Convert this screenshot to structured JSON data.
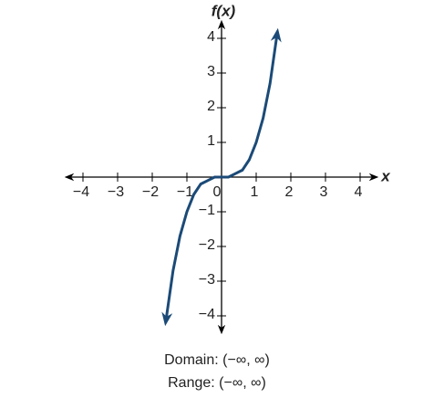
{
  "chart_data": {
    "type": "line",
    "x_label": "x",
    "y_label": "f(x)",
    "x": [
      -1.6,
      -1.4,
      -1.2,
      -1,
      -0.8,
      -0.6,
      -0.4,
      -0.2,
      0,
      0.2,
      0.4,
      0.6,
      0.8,
      1,
      1.2,
      1.4,
      1.6
    ],
    "values": [
      -4.1,
      -2.7,
      -1.7,
      -1,
      -0.5,
      -0.2,
      -0.1,
      0,
      0,
      0,
      0.1,
      0.2,
      0.5,
      1,
      1.7,
      2.7,
      4.1
    ],
    "color": "#1b4a77",
    "xlim": [
      -4.5,
      4.5
    ],
    "ylim": [
      -4.5,
      4.5
    ],
    "xticks": [
      {
        "value": -4,
        "label": "−4"
      },
      {
        "value": -3,
        "label": "−3"
      },
      {
        "value": -2,
        "label": "−2"
      },
      {
        "value": -1,
        "label": "−1"
      },
      0,
      1,
      2,
      3,
      4
    ],
    "yticks": [
      4,
      3,
      2,
      1,
      {
        "value": -1,
        "label": "−1"
      },
      {
        "value": -2,
        "label": "−2"
      },
      {
        "value": -3,
        "label": "−3"
      },
      {
        "value": -4,
        "label": "−4"
      }
    ],
    "caption": [
      "Domain: (−∞, ∞)",
      "Range: (−∞, ∞)"
    ]
  }
}
